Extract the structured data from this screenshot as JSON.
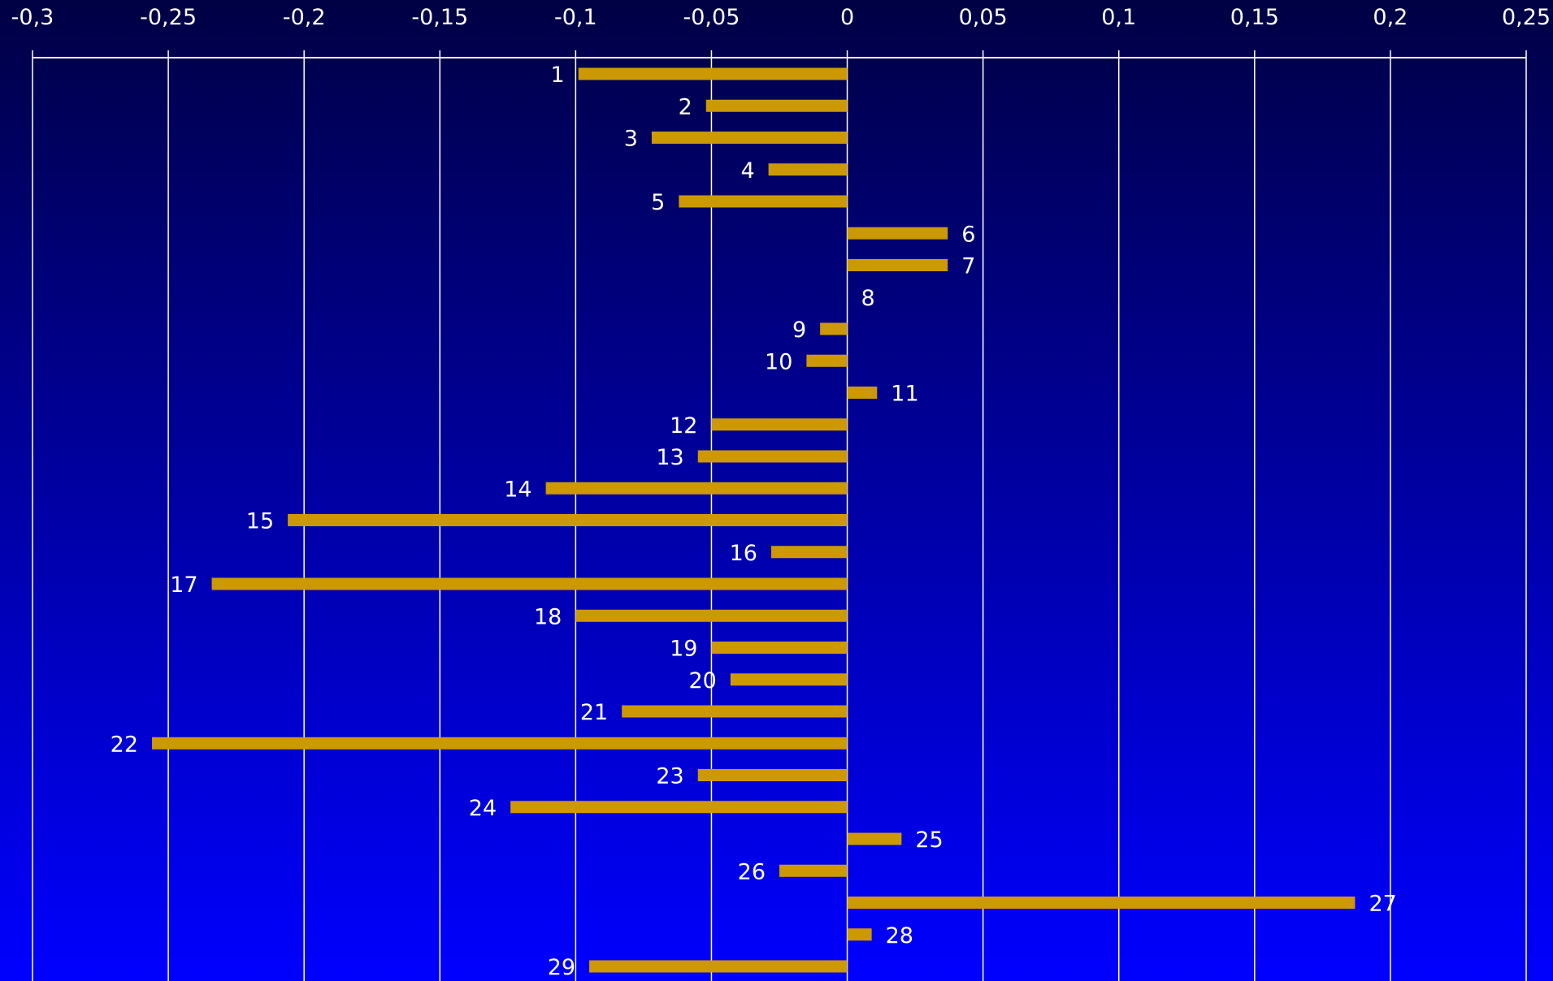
{
  "chart_data": {
    "type": "bar",
    "orientation": "horizontal",
    "title": "",
    "xlabel": "",
    "ylabel": "",
    "x_axis_position": "top",
    "xlim": [
      -0.3,
      0.25
    ],
    "x_ticks": [
      -0.3,
      -0.25,
      -0.2,
      -0.15,
      -0.1,
      -0.05,
      0,
      0.05,
      0.1,
      0.15,
      0.2,
      0.25
    ],
    "x_tick_labels": [
      "-0,3",
      "-0,25",
      "-0,2",
      "-0,15",
      "-0,1",
      "-0,05",
      "0",
      "0,05",
      "0,1",
      "0,15",
      "0,2",
      "0,25"
    ],
    "grid": "vertical",
    "legend": "none",
    "categories": [
      "1",
      "2",
      "3",
      "4",
      "5",
      "6",
      "7",
      "8",
      "9",
      "10",
      "11",
      "12",
      "13",
      "14",
      "15",
      "16",
      "17",
      "18",
      "19",
      "20",
      "21",
      "22",
      "23",
      "24",
      "25",
      "26",
      "27",
      "28",
      "29"
    ],
    "values": [
      -0.099,
      -0.052,
      -0.072,
      -0.029,
      -0.062,
      0.037,
      0.037,
      0.0,
      -0.01,
      -0.015,
      0.011,
      -0.05,
      -0.055,
      -0.111,
      -0.206,
      -0.028,
      -0.234,
      -0.1,
      -0.05,
      -0.043,
      -0.083,
      -0.256,
      -0.055,
      -0.124,
      0.02,
      -0.025,
      0.187,
      0.009,
      -0.095
    ],
    "colors": {
      "background_top": "#000044",
      "background_bottom": "#0000ff",
      "bar": "#cc9900",
      "grid": "#ffffff",
      "text": "#ffffff"
    }
  }
}
